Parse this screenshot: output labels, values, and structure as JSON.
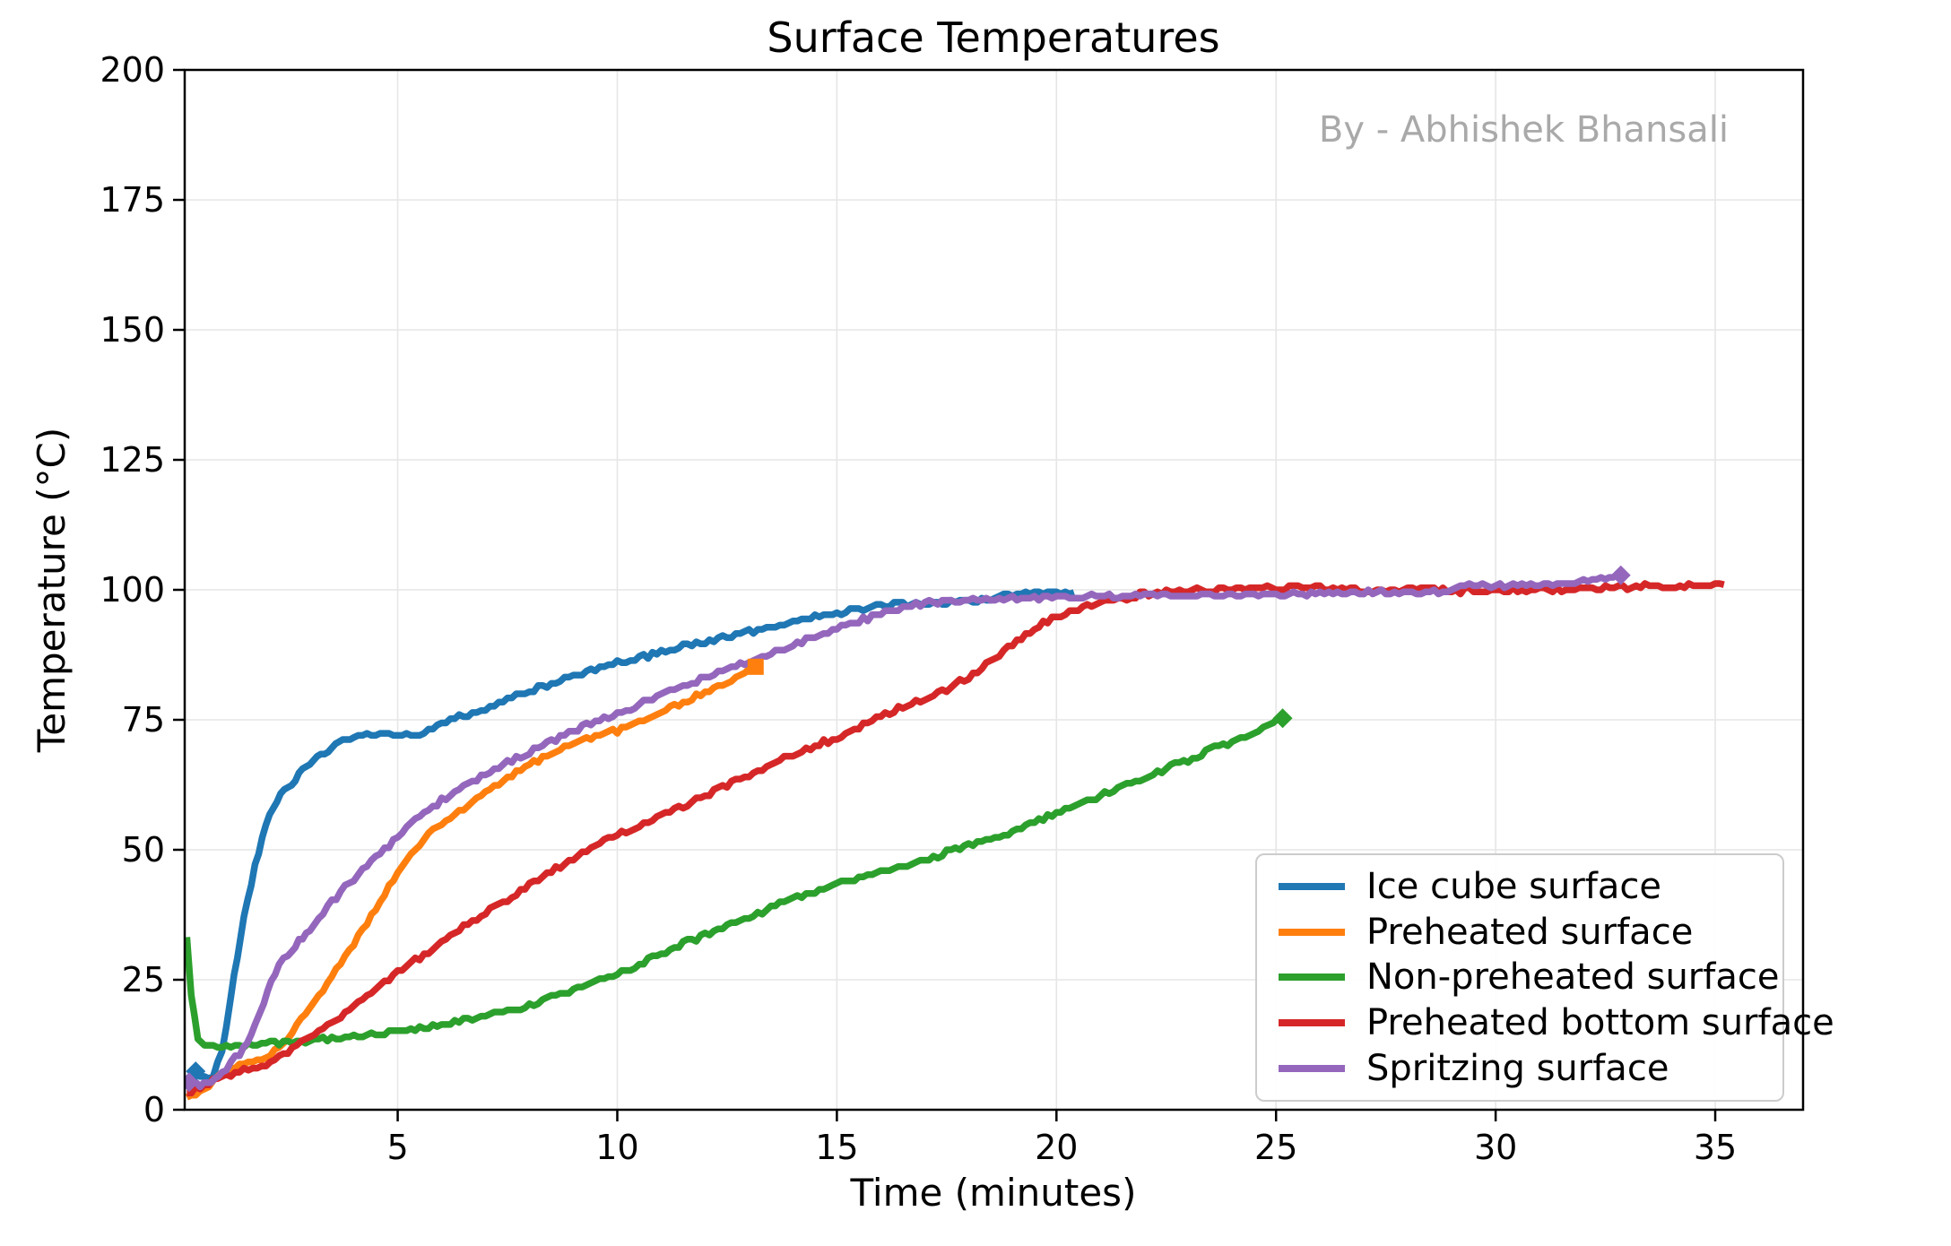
{
  "figure": {
    "title": "Surface Temperatures",
    "watermark": "By - Abhishek Bhansali",
    "background": "#ffffff"
  },
  "axes": {
    "xlabel": "Time (minutes)",
    "ylabel": "Temperature (°C)",
    "x_ticks": [
      5,
      10,
      15,
      20,
      25,
      30,
      35
    ],
    "y_ticks": [
      0,
      25,
      50,
      75,
      100,
      125,
      150,
      175,
      200
    ],
    "xlim": [
      0.15,
      37.0
    ],
    "ylim": [
      0,
      200
    ],
    "grid": true,
    "grid_color": "#e6e6e6",
    "spine_color": "#000000",
    "tick_color": "#000000"
  },
  "legend": {
    "position": "lower right",
    "border_color": "#cccccc"
  },
  "chart_data": {
    "type": "line",
    "title": "Surface Temperatures",
    "xlabel": "Time (minutes)",
    "ylabel": "Temperature (°C)",
    "xlim": [
      0.15,
      37.0
    ],
    "ylim": [
      0,
      200
    ],
    "grid": true,
    "legend_position": "lower right",
    "series": [
      {
        "name": "Ice cube surface",
        "color": "#1f77b4",
        "markers": [
          {
            "shape": "diamond",
            "at": [
              0.4,
              7.4
            ]
          }
        ],
        "points": [
          [
            0.4,
            7.4
          ],
          [
            0.6,
            6.2
          ],
          [
            0.8,
            6.8
          ],
          [
            1.0,
            11
          ],
          [
            1.1,
            16
          ],
          [
            1.2,
            22
          ],
          [
            1.35,
            29
          ],
          [
            1.5,
            37
          ],
          [
            1.75,
            47
          ],
          [
            2.0,
            55
          ],
          [
            2.25,
            59.5
          ],
          [
            2.5,
            62
          ],
          [
            2.75,
            64.5
          ],
          [
            3.0,
            66.5
          ],
          [
            3.25,
            68.3
          ],
          [
            3.5,
            69.8
          ],
          [
            3.75,
            71
          ],
          [
            4.0,
            71.8
          ],
          [
            4.3,
            72.2
          ],
          [
            5.4,
            72.2
          ],
          [
            5.6,
            72.8
          ],
          [
            6.0,
            74.2
          ],
          [
            6.3,
            75.2
          ],
          [
            6.5,
            75.8
          ],
          [
            7.0,
            77.2
          ],
          [
            7.5,
            78.7
          ],
          [
            8.0,
            80.5
          ],
          [
            8.5,
            82
          ],
          [
            9.0,
            83.4
          ],
          [
            9.5,
            84.7
          ],
          [
            10.0,
            85.8
          ],
          [
            10.5,
            86.9
          ],
          [
            11.0,
            88
          ],
          [
            11.5,
            89
          ],
          [
            12.0,
            90
          ],
          [
            12.5,
            91
          ],
          [
            13.0,
            92
          ],
          [
            13.5,
            92.9
          ],
          [
            14.0,
            93.8
          ],
          [
            14.5,
            94.7
          ],
          [
            15.0,
            95.5
          ],
          [
            15.5,
            96.4
          ],
          [
            16.0,
            97
          ],
          [
            16.5,
            97.3
          ],
          [
            17.0,
            97.4
          ],
          [
            17.5,
            97.5
          ],
          [
            18.0,
            97.9
          ],
          [
            18.5,
            98.3
          ],
          [
            19.0,
            98.9
          ],
          [
            19.4,
            99.3
          ],
          [
            20.0,
            99.4
          ],
          [
            20.4,
            99.5
          ]
        ]
      },
      {
        "name": "Preheated surface",
        "color": "#ff7f0e",
        "markers": [
          {
            "shape": "square",
            "at": [
              13.15,
              85.2
            ]
          }
        ],
        "points": [
          [
            0.2,
            2.5
          ],
          [
            0.5,
            3.8
          ],
          [
            0.8,
            5.5
          ],
          [
            1.0,
            6.8
          ],
          [
            1.3,
            8.2
          ],
          [
            1.6,
            9.2
          ],
          [
            2.0,
            9.8
          ],
          [
            2.3,
            12
          ],
          [
            2.6,
            15
          ],
          [
            3.0,
            19.5
          ],
          [
            3.4,
            24.5
          ],
          [
            3.8,
            29.5
          ],
          [
            4.2,
            34.5
          ],
          [
            4.6,
            40
          ],
          [
            5.0,
            45.5
          ],
          [
            5.4,
            50
          ],
          [
            5.8,
            53.5
          ],
          [
            6.2,
            56
          ],
          [
            6.6,
            58.5
          ],
          [
            7.0,
            61
          ],
          [
            7.4,
            63.2
          ],
          [
            7.8,
            65.4
          ],
          [
            8.2,
            67.4
          ],
          [
            8.6,
            69
          ],
          [
            9.0,
            70.3
          ],
          [
            9.5,
            71.7
          ],
          [
            10.0,
            72.9
          ],
          [
            10.5,
            74.5
          ],
          [
            11.0,
            76.3
          ],
          [
            11.5,
            78.2
          ],
          [
            12.0,
            80.2
          ],
          [
            12.5,
            82.3
          ],
          [
            13.0,
            84.8
          ],
          [
            13.15,
            85.2
          ]
        ]
      },
      {
        "name": "Non-preheated surface",
        "color": "#2ca02c",
        "markers": [
          {
            "shape": "diamond",
            "at": [
              25.15,
              75.3
            ]
          }
        ],
        "points": [
          [
            0.2,
            33
          ],
          [
            0.3,
            22
          ],
          [
            0.45,
            14
          ],
          [
            0.6,
            12.6
          ],
          [
            1.0,
            12.4
          ],
          [
            1.5,
            12.3
          ],
          [
            2.0,
            12.8
          ],
          [
            2.5,
            13
          ],
          [
            3.0,
            13.2
          ],
          [
            3.5,
            13.6
          ],
          [
            4.0,
            14
          ],
          [
            4.5,
            14.5
          ],
          [
            5.0,
            15
          ],
          [
            5.5,
            15.7
          ],
          [
            6.0,
            16.4
          ],
          [
            6.5,
            17.2
          ],
          [
            7.0,
            18.1
          ],
          [
            7.5,
            19.1
          ],
          [
            8.0,
            20.2
          ],
          [
            8.5,
            21.5
          ],
          [
            9.0,
            23
          ],
          [
            9.5,
            24.5
          ],
          [
            10.0,
            26
          ],
          [
            10.5,
            27.9
          ],
          [
            11.0,
            29.8
          ],
          [
            11.5,
            31.9
          ],
          [
            12.0,
            33.6
          ],
          [
            12.5,
            35.4
          ],
          [
            13.0,
            37
          ],
          [
            13.7,
            39.5
          ],
          [
            14.5,
            42
          ],
          [
            15.0,
            43.5
          ],
          [
            16.0,
            45.5
          ],
          [
            16.4,
            46.2
          ],
          [
            17.0,
            48
          ],
          [
            18.0,
            51
          ],
          [
            18.4,
            51.7
          ],
          [
            19.0,
            53.5
          ],
          [
            20.0,
            57
          ],
          [
            21.0,
            60.3
          ],
          [
            22.0,
            63.8
          ],
          [
            23.0,
            67.2
          ],
          [
            24.0,
            71
          ],
          [
            24.6,
            73
          ],
          [
            25.15,
            75.3
          ]
        ]
      },
      {
        "name": "Preheated bottom surface",
        "color": "#d62728",
        "markers": [],
        "points": [
          [
            0.2,
            3.2
          ],
          [
            0.5,
            4.2
          ],
          [
            1.0,
            6.3
          ],
          [
            1.5,
            7.5
          ],
          [
            2.0,
            8.5
          ],
          [
            2.5,
            11
          ],
          [
            3.0,
            13.8
          ],
          [
            3.5,
            16.8
          ],
          [
            4.0,
            20
          ],
          [
            4.5,
            23.2
          ],
          [
            5.0,
            26.3
          ],
          [
            5.5,
            29.3
          ],
          [
            6.0,
            32.2
          ],
          [
            6.5,
            35
          ],
          [
            7.0,
            37.8
          ],
          [
            7.5,
            40.5
          ],
          [
            8.0,
            43.2
          ],
          [
            8.5,
            45.8
          ],
          [
            9.0,
            48.3
          ],
          [
            9.3,
            50
          ],
          [
            10.0,
            52.8
          ],
          [
            10.5,
            54.8
          ],
          [
            11.0,
            56.6
          ],
          [
            11.5,
            58.3
          ],
          [
            12.0,
            60.3
          ],
          [
            12.5,
            62.4
          ],
          [
            13.0,
            64.5
          ],
          [
            13.5,
            66.5
          ],
          [
            14.0,
            68.3
          ],
          [
            14.5,
            70
          ],
          [
            15.0,
            71.6
          ],
          [
            15.5,
            73.5
          ],
          [
            15.8,
            75
          ],
          [
            16.4,
            77.2
          ],
          [
            17.0,
            79
          ],
          [
            17.4,
            80.5
          ],
          [
            18.0,
            83.3
          ],
          [
            18.4,
            85.5
          ],
          [
            19.0,
            89.5
          ],
          [
            19.5,
            92.5
          ],
          [
            20.0,
            95
          ],
          [
            20.5,
            96.3
          ],
          [
            21.0,
            97.3
          ],
          [
            21.5,
            98.3
          ],
          [
            22.0,
            99.2
          ],
          [
            22.5,
            99.7
          ],
          [
            23.0,
            100
          ],
          [
            24.0,
            100.3
          ],
          [
            25.0,
            100.4
          ],
          [
            26.0,
            100.3
          ],
          [
            27.0,
            100.1
          ],
          [
            28.0,
            100
          ],
          [
            29.0,
            99.8
          ],
          [
            30.0,
            99.8
          ],
          [
            31.0,
            100
          ],
          [
            32.0,
            100.3
          ],
          [
            33.0,
            100.5
          ],
          [
            34.0,
            100.7
          ],
          [
            35.2,
            101
          ]
        ]
      },
      {
        "name": "Spritzing surface",
        "color": "#9467bd",
        "markers": [
          {
            "shape": "diamond",
            "at": [
              0.25,
              5.3
            ]
          },
          {
            "shape": "diamond",
            "at": [
              32.85,
              102.8
            ]
          }
        ],
        "points": [
          [
            0.25,
            5.3
          ],
          [
            0.5,
            4.6
          ],
          [
            0.75,
            5.4
          ],
          [
            1.0,
            7
          ],
          [
            1.2,
            9
          ],
          [
            1.4,
            11
          ],
          [
            1.57,
            13
          ],
          [
            1.75,
            16.5
          ],
          [
            1.95,
            20.5
          ],
          [
            2.12,
            25
          ],
          [
            2.3,
            27.5
          ],
          [
            2.5,
            30
          ],
          [
            2.75,
            32.5
          ],
          [
            3.0,
            35
          ],
          [
            3.5,
            40
          ],
          [
            4.0,
            44.5
          ],
          [
            4.5,
            48.5
          ],
          [
            5.0,
            52.5
          ],
          [
            5.4,
            55.8
          ],
          [
            5.8,
            58.3
          ],
          [
            6.2,
            60.5
          ],
          [
            6.6,
            62.6
          ],
          [
            7.0,
            64.5
          ],
          [
            7.5,
            66.8
          ],
          [
            8.0,
            69
          ],
          [
            8.5,
            71
          ],
          [
            9.0,
            72.8
          ],
          [
            9.5,
            74.6
          ],
          [
            10.0,
            76.3
          ],
          [
            10.5,
            78
          ],
          [
            11.0,
            79.7
          ],
          [
            11.5,
            81.4
          ],
          [
            12.0,
            83
          ],
          [
            12.5,
            84.7
          ],
          [
            13.0,
            86.3
          ],
          [
            13.5,
            87.8
          ],
          [
            14.0,
            89.4
          ],
          [
            14.5,
            91
          ],
          [
            15.0,
            92.5
          ],
          [
            15.5,
            94
          ],
          [
            16.0,
            95.5
          ],
          [
            16.5,
            96.8
          ],
          [
            17.0,
            97.5
          ],
          [
            17.5,
            97.9
          ],
          [
            18.0,
            98.1
          ],
          [
            19.0,
            98.4
          ],
          [
            20.0,
            98.6
          ],
          [
            21.0,
            98.7
          ],
          [
            22.0,
            98.9
          ],
          [
            23.0,
            99
          ],
          [
            24.0,
            99
          ],
          [
            25.0,
            99.1
          ],
          [
            26.0,
            99.3
          ],
          [
            27.0,
            99.4
          ],
          [
            28.0,
            99.5
          ],
          [
            28.9,
            99.6
          ],
          [
            29.3,
            100.9
          ],
          [
            30.0,
            100.9
          ],
          [
            31.0,
            100.9
          ],
          [
            31.6,
            101.1
          ],
          [
            32.0,
            101.6
          ],
          [
            32.5,
            102.3
          ],
          [
            32.85,
            102.8
          ]
        ]
      }
    ]
  }
}
